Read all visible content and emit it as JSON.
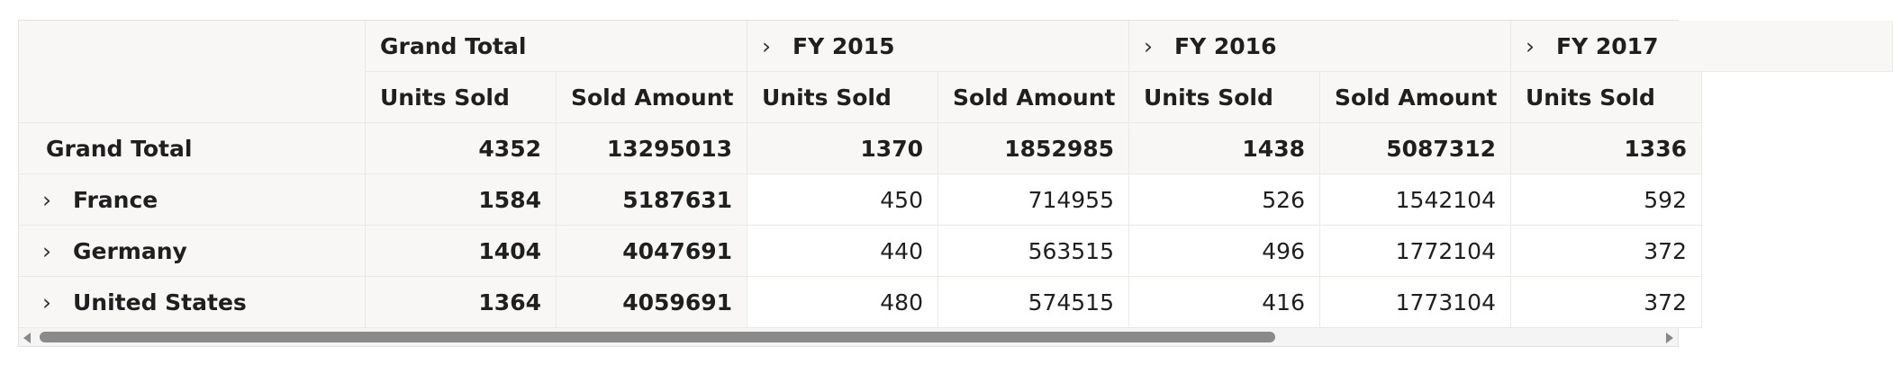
{
  "columns": {
    "groups": [
      {
        "label": "Grand Total",
        "expandable": false
      },
      {
        "label": "FY 2015",
        "expandable": true
      },
      {
        "label": "FY 2016",
        "expandable": true
      },
      {
        "label": "FY 2017",
        "expandable": true
      }
    ],
    "measures": [
      "Units Sold",
      "Sold Amount",
      "Units Sold",
      "Sold Amount",
      "Units Sold",
      "Sold Amount",
      "Units Sold"
    ]
  },
  "rows": [
    {
      "label": "Grand Total",
      "expandable": false,
      "values": [
        "4352",
        "13295013",
        "1370",
        "1852985",
        "1438",
        "5087312",
        "1336"
      ]
    },
    {
      "label": "France",
      "expandable": true,
      "values": [
        "1584",
        "5187631",
        "450",
        "714955",
        "526",
        "1542104",
        "592"
      ]
    },
    {
      "label": "Germany",
      "expandable": true,
      "values": [
        "1404",
        "4047691",
        "440",
        "563515",
        "496",
        "1772104",
        "372"
      ]
    },
    {
      "label": "United States",
      "expandable": true,
      "values": [
        "1364",
        "4059691",
        "480",
        "574515",
        "416",
        "1773104",
        "372"
      ]
    }
  ],
  "icons": {
    "expand": "chevron-right-icon"
  },
  "colors": {
    "header_bg": "#f8f7f6",
    "border": "#ebe9e6",
    "scroll_thumb": "#8a8a8a"
  }
}
